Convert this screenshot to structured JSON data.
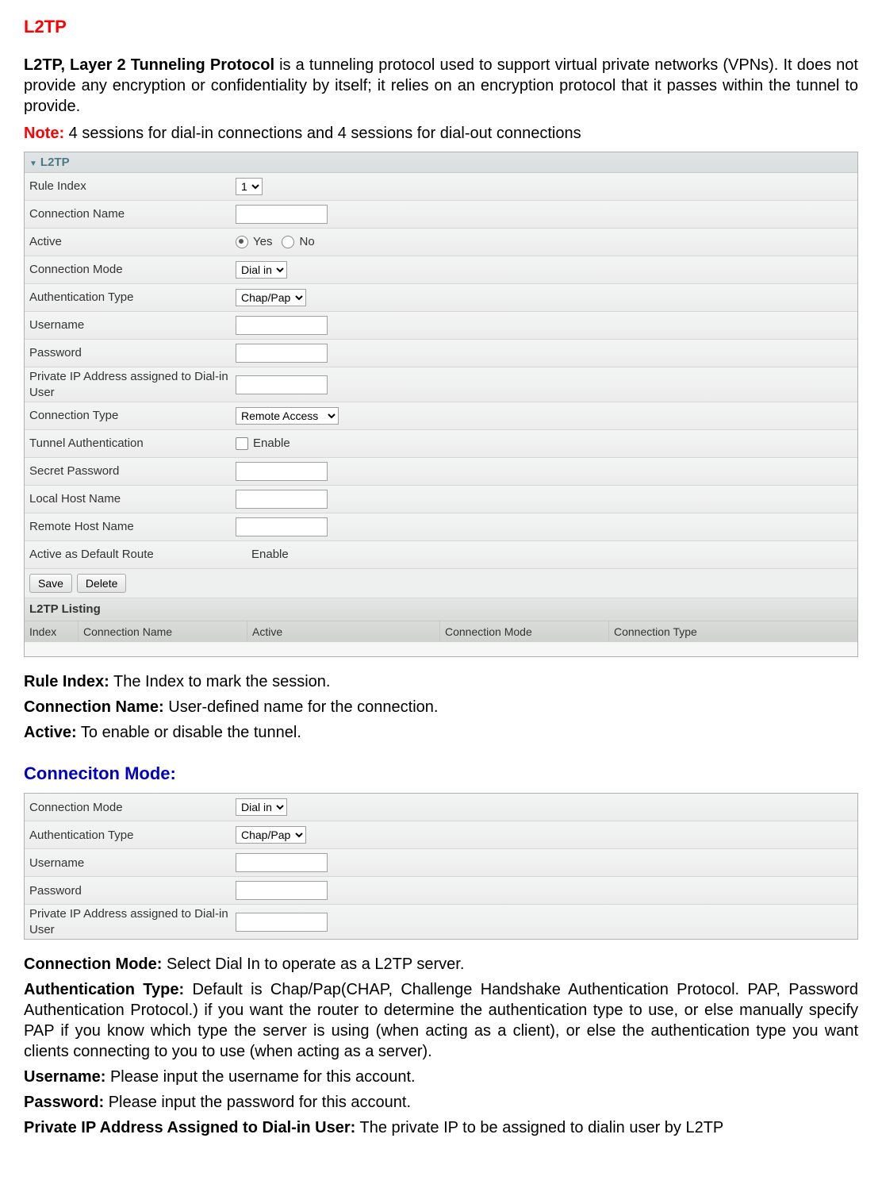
{
  "heading": "L2TP",
  "intro_bold": "L2TP, Layer 2 Tunneling Protocol",
  "intro_rest": " is a tunneling protocol used to support virtual private networks (VPNs). It does not provide any encryption or confidentiality by itself; it relies on an encryption protocol that it passes within the tunnel to provide.",
  "note_label": "Note:",
  "note_text": " 4 sessions for dial-in connections and 4 sessions for dial-out connections",
  "panel1": {
    "title": "L2TP",
    "rows": {
      "rule_index": {
        "label": "Rule Index",
        "value": "1"
      },
      "conn_name": {
        "label": "Connection Name"
      },
      "active": {
        "label": "Active",
        "yes": "Yes",
        "no": "No"
      },
      "conn_mode": {
        "label": "Connection Mode",
        "value": "Dial in"
      },
      "auth_type": {
        "label": "Authentication Type",
        "value": "Chap/Pap"
      },
      "username": {
        "label": "Username"
      },
      "password": {
        "label": "Password"
      },
      "private_ip": {
        "label": "Private IP Address assigned to Dial-in User"
      },
      "conn_type": {
        "label": "Connection Type",
        "value": "Remote Access"
      },
      "tunnel_auth": {
        "label": "Tunnel Authentication",
        "enable": "Enable"
      },
      "secret": {
        "label": "Secret Password"
      },
      "local_host": {
        "label": "Local Host Name"
      },
      "remote_host": {
        "label": "Remote Host Name"
      },
      "default_route": {
        "label": "Active as Default Route",
        "enable": "Enable"
      }
    },
    "buttons": {
      "save": "Save",
      "delete": "Delete"
    },
    "listing": {
      "title": "L2TP Listing",
      "cols": {
        "index": "Index",
        "conn_name": "Connection Name",
        "active": "Active",
        "conn_mode": "Connection Mode",
        "conn_type": "Connection Type"
      },
      "widths": {
        "index": "55px",
        "conn_name": "200px",
        "active": "230px",
        "conn_mode": "200px",
        "conn_type": "auto"
      }
    }
  },
  "defns1": [
    {
      "term": "Rule Index:",
      "desc": " The Index to mark the session."
    },
    {
      "term": "Connection Name:",
      "desc": " User-defined name for the connection."
    },
    {
      "term": "Active:",
      "desc": " To enable or disable the tunnel."
    }
  ],
  "sub_heading": "Conneciton Mode:",
  "panel2": {
    "rows": {
      "conn_mode": {
        "label": "Connection Mode",
        "value": "Dial in"
      },
      "auth_type": {
        "label": "Authentication Type",
        "value": "Chap/Pap"
      },
      "username": {
        "label": "Username"
      },
      "password": {
        "label": "Password"
      },
      "private_ip": {
        "label": "Private IP Address assigned to Dial-in User"
      }
    }
  },
  "defns2": [
    {
      "term": "Connection Mode:",
      "desc": " Select Dial In to operate as a L2TP server."
    },
    {
      "term": "Authentication Type:",
      "desc": " Default is Chap/Pap(CHAP, Challenge Handshake Authentication Protocol. PAP, Password Authentication Protocol.) if you want the router to determine the authentication type to use, or else manually specify PAP if you know which type the server is using (when acting as a client), or else the authentication type you want clients connecting to you to use (when acting as a server)."
    },
    {
      "term": "Username:",
      "desc": " Please input the username for this account."
    },
    {
      "term": "Password:",
      "desc": " Please input the password for this account."
    },
    {
      "term": "Private IP Address Assigned to Dial-in User:",
      "desc": " The private IP to be assigned to dialin user by L2TP"
    }
  ]
}
